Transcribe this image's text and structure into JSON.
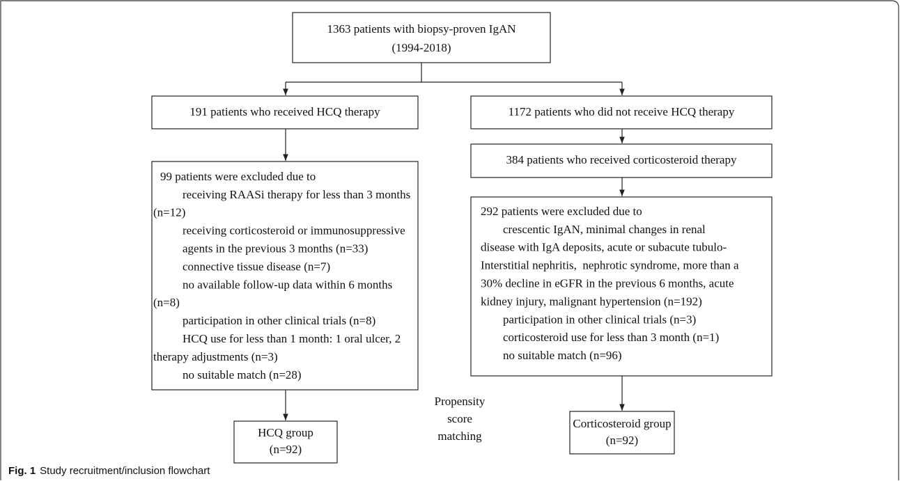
{
  "nodes": [
    {
      "id": "top",
      "lines": [
        "1363 patients with biopsy-proven IgAN",
        "(1994-2018)"
      ]
    },
    {
      "id": "hcq",
      "lines": [
        "191 patients who received HCQ therapy"
      ]
    },
    {
      "id": "nohcq",
      "lines": [
        "1172 patients who did not receive HCQ therapy"
      ]
    },
    {
      "id": "excl_hcq",
      "lines": [
        "99 patients were excluded due to",
        "receiving RAASi therapy for less than 3 months",
        "(n=12)",
        "receiving corticosteroid or immunosuppressive",
        "agents in the previous 3 months (n=33)",
        "connective tissue disease (n=7)",
        "no available follow-up data within 6 months",
        "(n=8)",
        "participation in other clinical trials (n=8)",
        "HCQ use for less than 1 month: 1 oral ulcer, 2",
        "therapy adjustments (n=3)",
        "no suitable match (n=28)"
      ]
    },
    {
      "id": "cort",
      "lines": [
        "384 patients who received corticosteroid therapy"
      ]
    },
    {
      "id": "excl_cort",
      "lines": [
        "292 patients were excluded due to",
        "crescentic IgAN, minimal changes in renal",
        "disease with IgA deposits, acute or subacute tubulo-",
        "Interstitial nephritis,  nephrotic syndrome, more than a",
        "30% decline in eGFR in the previous 6 months, acute",
        "kidney injury, malignant hypertension (n=192)",
        "participation in other clinical trials (n=3)",
        "corticosteroid use for less than 3 month (n=1)",
        "no suitable match (n=96)"
      ]
    },
    {
      "id": "hcq_group",
      "lines": [
        "HCQ group",
        "(n=92)"
      ]
    },
    {
      "id": "cort_group",
      "lines": [
        "Corticosteroid group",
        "(n=92)"
      ]
    }
  ],
  "label": {
    "lines": [
      "Propensity",
      "score",
      "matching"
    ]
  },
  "caption": {
    "label": "Fig. 1",
    "text": "Study recruitment/inclusion flowchart"
  }
}
